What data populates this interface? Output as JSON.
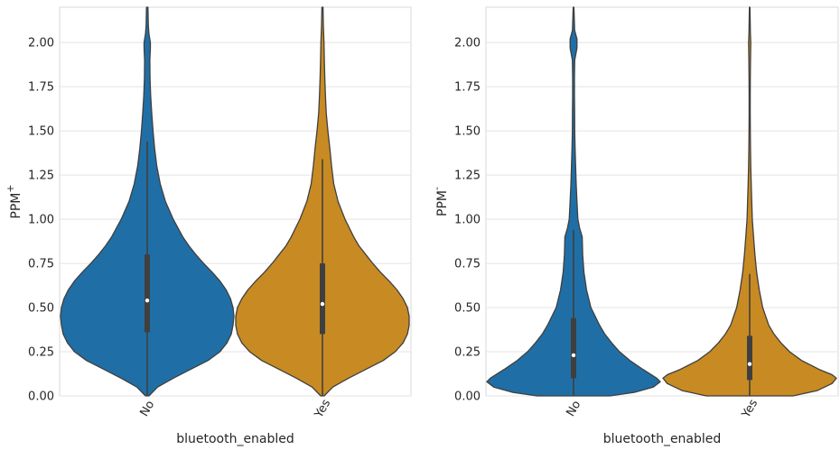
{
  "chart_data": [
    {
      "type": "violin",
      "xlabel": "bluetooth_enabled",
      "ylabel": "PPM",
      "ylabel_superscript": "+",
      "categories": [
        "No",
        "Yes"
      ],
      "ylim": [
        0,
        2.2
      ],
      "yticks": [
        "0.00",
        "0.25",
        "0.50",
        "0.75",
        "1.00",
        "1.25",
        "1.50",
        "1.75",
        "2.00"
      ],
      "grid": true,
      "colors": [
        "#1f6fa6",
        "#c88a22"
      ],
      "series": [
        {
          "category": "No",
          "box": {
            "q1": 0.36,
            "median": 0.54,
            "q3": 0.8,
            "whisker_low": 0.0,
            "whisker_high": 1.44
          },
          "density": [
            [
              0.0,
              0.02
            ],
            [
              0.05,
              0.12
            ],
            [
              0.1,
              0.3
            ],
            [
              0.15,
              0.5
            ],
            [
              0.2,
              0.7
            ],
            [
              0.25,
              0.84
            ],
            [
              0.3,
              0.92
            ],
            [
              0.35,
              0.97
            ],
            [
              0.4,
              0.99
            ],
            [
              0.45,
              1.0
            ],
            [
              0.5,
              0.99
            ],
            [
              0.55,
              0.96
            ],
            [
              0.6,
              0.91
            ],
            [
              0.65,
              0.84
            ],
            [
              0.7,
              0.75
            ],
            [
              0.75,
              0.65
            ],
            [
              0.8,
              0.56
            ],
            [
              0.85,
              0.48
            ],
            [
              0.9,
              0.41
            ],
            [
              1.0,
              0.3
            ],
            [
              1.1,
              0.21
            ],
            [
              1.2,
              0.15
            ],
            [
              1.3,
              0.11
            ],
            [
              1.4,
              0.085
            ],
            [
              1.5,
              0.067
            ],
            [
              1.6,
              0.052
            ],
            [
              1.7,
              0.04
            ],
            [
              1.8,
              0.032
            ],
            [
              1.9,
              0.03
            ],
            [
              1.97,
              0.036
            ],
            [
              2.0,
              0.036
            ],
            [
              2.05,
              0.02
            ],
            [
              2.1,
              0.012
            ],
            [
              2.2,
              0.008
            ]
          ]
        },
        {
          "category": "Yes",
          "box": {
            "q1": 0.35,
            "median": 0.52,
            "q3": 0.75,
            "whisker_low": 0.0,
            "whisker_high": 1.34
          },
          "density": [
            [
              0.0,
              0.02
            ],
            [
              0.05,
              0.12
            ],
            [
              0.1,
              0.3
            ],
            [
              0.15,
              0.5
            ],
            [
              0.2,
              0.7
            ],
            [
              0.25,
              0.84
            ],
            [
              0.3,
              0.93
            ],
            [
              0.35,
              0.98
            ],
            [
              0.4,
              1.0
            ],
            [
              0.45,
              1.0
            ],
            [
              0.5,
              0.98
            ],
            [
              0.55,
              0.93
            ],
            [
              0.6,
              0.86
            ],
            [
              0.65,
              0.77
            ],
            [
              0.7,
              0.67
            ],
            [
              0.75,
              0.58
            ],
            [
              0.8,
              0.5
            ],
            [
              0.85,
              0.42
            ],
            [
              0.9,
              0.36
            ],
            [
              1.0,
              0.26
            ],
            [
              1.1,
              0.18
            ],
            [
              1.2,
              0.13
            ],
            [
              1.3,
              0.105
            ],
            [
              1.4,
              0.085
            ],
            [
              1.5,
              0.062
            ],
            [
              1.6,
              0.044
            ],
            [
              1.7,
              0.034
            ],
            [
              1.8,
              0.027
            ],
            [
              1.9,
              0.022
            ],
            [
              2.0,
              0.018
            ],
            [
              2.1,
              0.01
            ],
            [
              2.2,
              0.006
            ]
          ]
        }
      ]
    },
    {
      "type": "violin",
      "xlabel": "bluetooth_enabled",
      "ylabel": "PPM",
      "ylabel_superscript": "-",
      "categories": [
        "No",
        "Yes"
      ],
      "ylim": [
        0,
        2.2
      ],
      "yticks": [
        "0.00",
        "0.25",
        "0.50",
        "0.75",
        "1.00",
        "1.25",
        "1.50",
        "1.75",
        "2.00"
      ],
      "grid": true,
      "colors": [
        "#1f6fa6",
        "#c88a22"
      ],
      "series": [
        {
          "category": "No",
          "box": {
            "q1": 0.1,
            "median": 0.23,
            "q3": 0.44,
            "whisker_low": 0.0,
            "whisker_high": 0.94
          },
          "density": [
            [
              0.0,
              0.42
            ],
            [
              0.02,
              0.7
            ],
            [
              0.05,
              0.92
            ],
            [
              0.08,
              1.0
            ],
            [
              0.1,
              0.96
            ],
            [
              0.15,
              0.8
            ],
            [
              0.2,
              0.65
            ],
            [
              0.25,
              0.53
            ],
            [
              0.3,
              0.44
            ],
            [
              0.35,
              0.36
            ],
            [
              0.4,
              0.3
            ],
            [
              0.45,
              0.25
            ],
            [
              0.5,
              0.2
            ],
            [
              0.6,
              0.15
            ],
            [
              0.7,
              0.12
            ],
            [
              0.8,
              0.105
            ],
            [
              0.9,
              0.1
            ],
            [
              0.95,
              0.07
            ],
            [
              1.0,
              0.05
            ],
            [
              1.1,
              0.04
            ],
            [
              1.2,
              0.03
            ],
            [
              1.3,
              0.024
            ],
            [
              1.4,
              0.018
            ],
            [
              1.5,
              0.014
            ],
            [
              1.6,
              0.012
            ],
            [
              1.7,
              0.01
            ],
            [
              1.8,
              0.01
            ],
            [
              1.9,
              0.014
            ],
            [
              1.97,
              0.04
            ],
            [
              2.02,
              0.04
            ],
            [
              2.07,
              0.012
            ],
            [
              2.2,
              0.004
            ]
          ]
        },
        {
          "category": "Yes",
          "box": {
            "q1": 0.09,
            "median": 0.18,
            "q3": 0.34,
            "whisker_low": 0.0,
            "whisker_high": 0.69
          },
          "density": [
            [
              0.0,
              0.5
            ],
            [
              0.03,
              0.78
            ],
            [
              0.07,
              0.95
            ],
            [
              0.1,
              1.0
            ],
            [
              0.12,
              0.95
            ],
            [
              0.15,
              0.8
            ],
            [
              0.2,
              0.6
            ],
            [
              0.25,
              0.46
            ],
            [
              0.3,
              0.36
            ],
            [
              0.35,
              0.28
            ],
            [
              0.4,
              0.22
            ],
            [
              0.5,
              0.15
            ],
            [
              0.6,
              0.11
            ],
            [
              0.7,
              0.08
            ],
            [
              0.8,
              0.06
            ],
            [
              0.9,
              0.045
            ],
            [
              1.0,
              0.03
            ],
            [
              1.1,
              0.024
            ],
            [
              1.2,
              0.018
            ],
            [
              1.3,
              0.012
            ],
            [
              1.4,
              0.009
            ],
            [
              1.5,
              0.007
            ],
            [
              1.6,
              0.006
            ],
            [
              1.7,
              0.006
            ],
            [
              1.8,
              0.007
            ],
            [
              1.9,
              0.009
            ],
            [
              2.0,
              0.012
            ],
            [
              2.05,
              0.008
            ],
            [
              2.2,
              0.003
            ]
          ]
        }
      ]
    }
  ]
}
